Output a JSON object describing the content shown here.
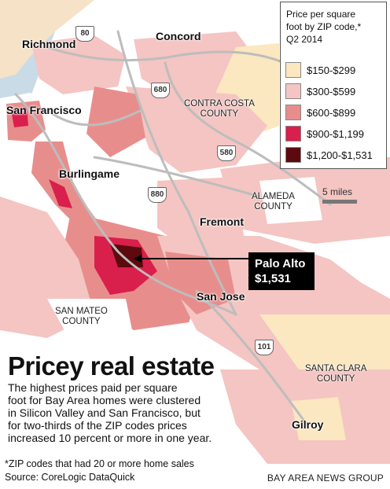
{
  "legend": {
    "title": "Price per square\nfoot by ZIP code,*\nQ2 2014",
    "items": [
      {
        "label": "$150-$299",
        "color": "#fbe7c0"
      },
      {
        "label": "$300-$599",
        "color": "#f4c5c2"
      },
      {
        "label": "$600-$899",
        "color": "#e78e8c"
      },
      {
        "label": "$900-$1,199",
        "color": "#d91f4b"
      },
      {
        "label": "$1,200-$1,531",
        "color": "#5c0a0e"
      }
    ]
  },
  "colors": {
    "water": "#c9dbe6",
    "land": "#ffffff",
    "road": "#bdbdbd",
    "ink": "#111111",
    "callout_bg": "#000000"
  },
  "cities": {
    "richmond": "Richmond",
    "concord": "Concord",
    "san_francisco": "San Francisco",
    "burlingame": "Burlingame",
    "fremont": "Fremont",
    "san_jose": "San Jose",
    "gilroy": "Gilroy"
  },
  "counties": {
    "contra_costa": "CONTRA COSTA\nCOUNTY",
    "alameda": "ALAMEDA\nCOUNTY",
    "san_mateo": "SAN MATEO\nCOUNTY",
    "santa_clara": "SANTA CLARA\nCOUNTY"
  },
  "highways": {
    "i80": "80",
    "i680": "680",
    "i580": "580",
    "i880": "880",
    "us101": "101"
  },
  "scale": {
    "label": "5 miles"
  },
  "callout": {
    "line1": "Palo Alto",
    "line2": "$1,531"
  },
  "headline": "Pricey real estate",
  "blurb": "The highest prices paid per square\nfoot for Bay Area homes were clustered\nin Silicon Valley and San Francisco, but\nfor two-thirds of the ZIP codes prices\nincreased 10 percent or more in one year.",
  "footnote": "*ZIP codes that had 20 or more home sales",
  "source": "Source: CoreLogic DataQuick",
  "credit": "BAY AREA NEWS GROUP"
}
